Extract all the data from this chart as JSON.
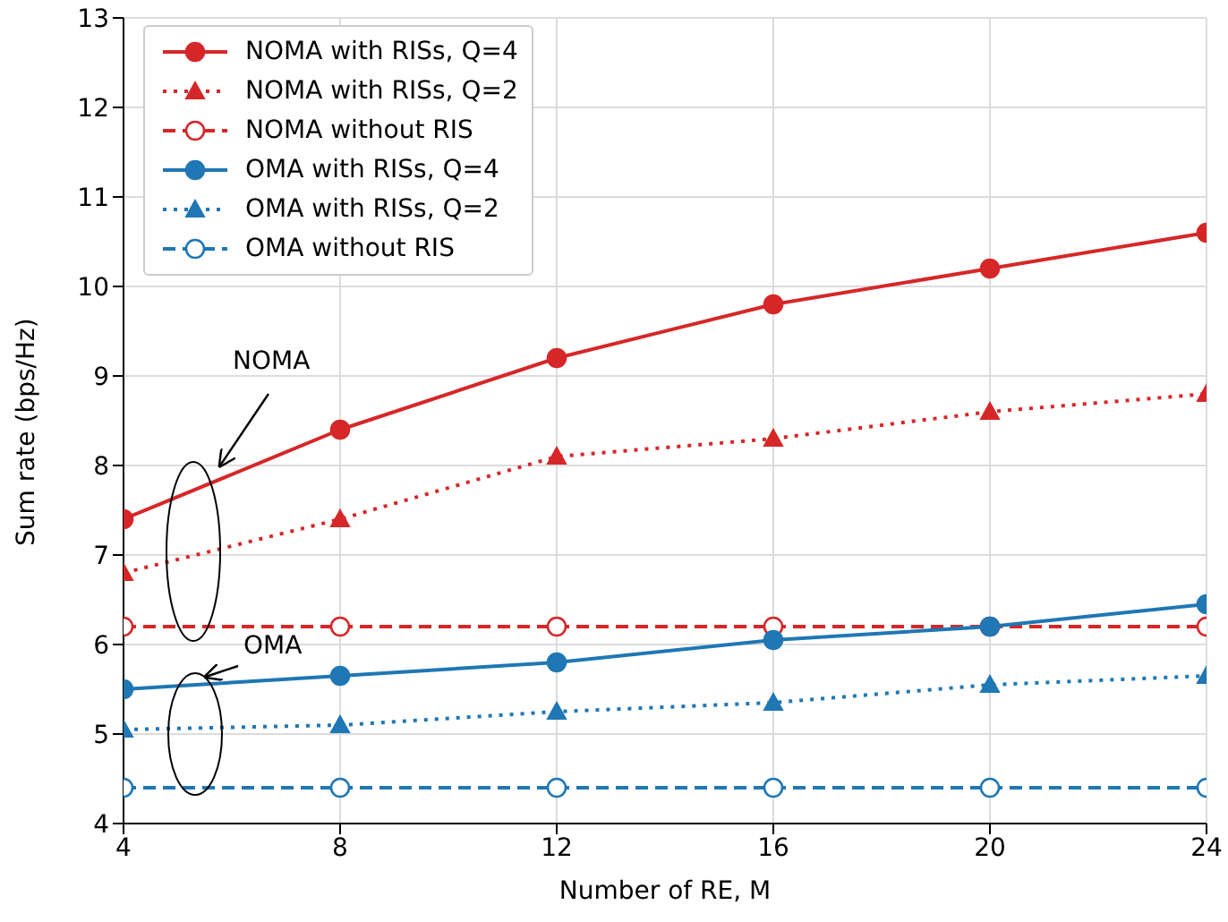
{
  "chart_data": {
    "type": "line",
    "xlabel": "Number of RE, M",
    "ylabel": "Sum rate (bps/Hz)",
    "x": [
      4,
      8,
      12,
      16,
      20,
      24
    ],
    "xlim": [
      4,
      24
    ],
    "xticks": [
      4,
      8,
      12,
      16,
      20,
      24
    ],
    "ylim": [
      4,
      13
    ],
    "yticks": [
      4,
      5,
      6,
      7,
      8,
      9,
      10,
      11,
      12,
      13
    ],
    "grid": true,
    "legend": "top left",
    "annotations": [
      "NOMA",
      "OMA"
    ],
    "series": [
      {
        "name": "NOMA with RISs, Q=4",
        "color": "#d62728",
        "marker": "circle",
        "line_style": "solid",
        "values": [
          7.4,
          8.4,
          9.2,
          9.8,
          10.2,
          10.6
        ]
      },
      {
        "name": "NOMA with RISs, Q=2",
        "color": "#d62728",
        "marker": "triangle",
        "line_style": "dotted",
        "values": [
          6.8,
          7.4,
          8.1,
          8.3,
          8.6,
          8.8
        ]
      },
      {
        "name": "NOMA without RIS",
        "color": "#d62728",
        "marker": "circle",
        "line_style": "dashed",
        "values": [
          6.2,
          6.2,
          6.2,
          6.2,
          6.2,
          6.2
        ]
      },
      {
        "name": "OMA with RISs, Q=4",
        "color": "#1f77b4",
        "marker": "circle",
        "line_style": "solid",
        "values": [
          5.5,
          5.65,
          5.8,
          6.05,
          6.2,
          6.45
        ]
      },
      {
        "name": "OMA with RISs, Q=2",
        "color": "#1f77b4",
        "marker": "triangle",
        "line_style": "dotted",
        "values": [
          5.05,
          5.1,
          5.25,
          5.35,
          5.55,
          5.65
        ]
      },
      {
        "name": "OMA without RIS",
        "color": "#1f77b4",
        "marker": "circle",
        "line_style": "dashed",
        "values": [
          4.4,
          4.4,
          4.4,
          4.4,
          4.4,
          4.4
        ]
      }
    ]
  }
}
